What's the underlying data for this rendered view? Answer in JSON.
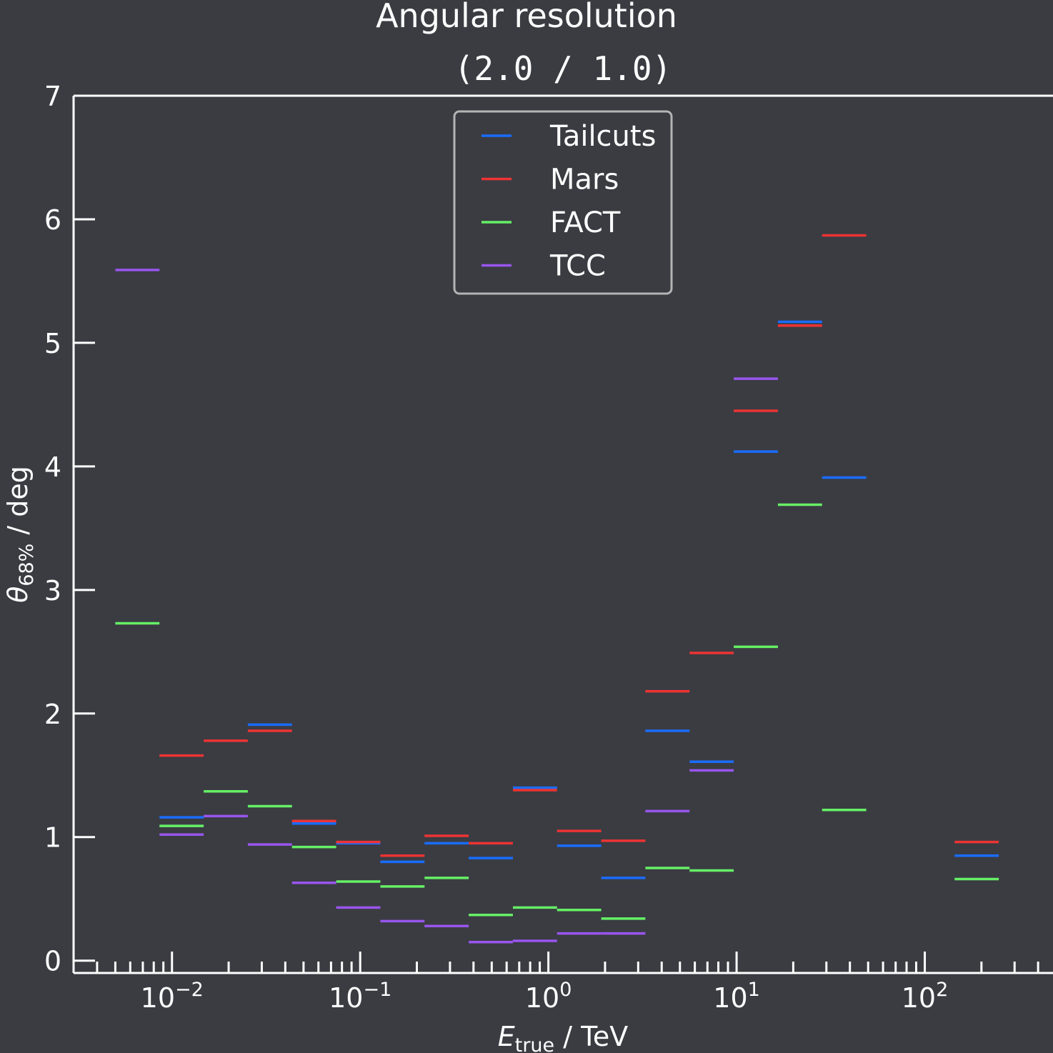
{
  "chart_data": {
    "type": "step",
    "title": "Angular resolution",
    "subtitle": "(2.0 / 1.0)",
    "xlabel": {
      "main": "E",
      "sub": "true",
      "unit": " / TeV"
    },
    "ylabel": {
      "main": "θ",
      "sub": "68%",
      "unit": " / deg"
    },
    "xscale": "log",
    "xlim": [
      0.003,
      480
    ],
    "ylim": [
      -0.1,
      7
    ],
    "yticks": [
      "0",
      "1",
      "2",
      "3",
      "4",
      "5",
      "6",
      "7"
    ],
    "xticks": [
      {
        "base": "10",
        "exp": "−2"
      },
      {
        "base": "10",
        "exp": "−1"
      },
      {
        "base": "10",
        "exp": "0"
      },
      {
        "base": "10",
        "exp": "1"
      },
      {
        "base": "10",
        "exp": "2"
      }
    ],
    "legend_position": "top-center",
    "bin_edges": [
      0.005,
      0.00858,
      0.01474,
      0.02529,
      0.04342,
      0.07454,
      0.128,
      0.2197,
      0.3772,
      0.6476,
      1.112,
      1.909,
      3.276,
      5.625,
      9.656,
      16.58,
      28.46,
      48.86,
      83.9,
      144.0,
      247.3
    ],
    "series": [
      {
        "name": "Tailcuts",
        "color": "#1a6cff",
        "values": [
          null,
          1.16,
          null,
          1.91,
          1.11,
          0.95,
          0.8,
          0.95,
          0.83,
          1.4,
          0.93,
          0.67,
          1.86,
          1.61,
          4.12,
          5.17,
          3.91,
          null,
          null,
          0.85
        ]
      },
      {
        "name": "Mars",
        "color": "#ee3333",
        "values": [
          null,
          1.66,
          1.78,
          1.86,
          1.13,
          0.96,
          0.85,
          1.01,
          0.95,
          1.38,
          1.05,
          0.97,
          2.18,
          2.49,
          4.45,
          5.14,
          5.87,
          null,
          null,
          0.96
        ]
      },
      {
        "name": "FACT",
        "color": "#66f066",
        "values": [
          2.73,
          1.09,
          1.37,
          1.25,
          0.92,
          0.64,
          0.6,
          0.67,
          0.37,
          0.43,
          0.41,
          0.34,
          0.75,
          0.73,
          2.54,
          3.69,
          1.22,
          null,
          null,
          0.66
        ]
      },
      {
        "name": "TCC",
        "color": "#9955ee",
        "values": [
          5.59,
          1.02,
          1.17,
          0.94,
          0.63,
          0.43,
          0.32,
          0.28,
          0.15,
          0.16,
          0.22,
          0.22,
          1.21,
          1.54,
          4.71,
          null,
          null,
          null,
          null,
          null
        ]
      }
    ]
  }
}
